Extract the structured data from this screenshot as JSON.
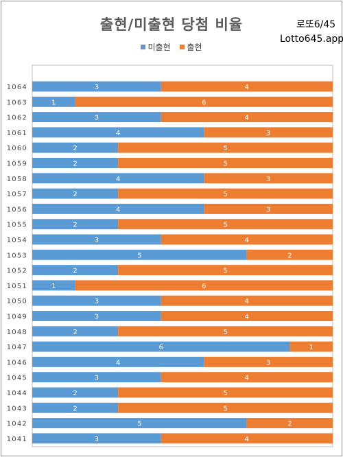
{
  "brand": {
    "line1": "로또6/45",
    "line2": "Lotto645.app"
  },
  "colors": {
    "not_drawn": "#5b9bd5",
    "drawn": "#ed7d31",
    "frame": "#8c8c8c",
    "axis": "#bfbfbf"
  },
  "chart_data": {
    "type": "bar",
    "orientation": "horizontal",
    "stacked": true,
    "title": "출현/미출현 당첨 비율",
    "legend_position": "top",
    "categories": [
      "1064",
      "1063",
      "1062",
      "1061",
      "1060",
      "1059",
      "1058",
      "1057",
      "1056",
      "1055",
      "1054",
      "1053",
      "1052",
      "1051",
      "1050",
      "1049",
      "1048",
      "1047",
      "1046",
      "1045",
      "1044",
      "1043",
      "1042",
      "1041"
    ],
    "series": [
      {
        "name": "미출현",
        "color": "#5b9bd5",
        "values": [
          3,
          1,
          3,
          4,
          2,
          2,
          4,
          2,
          4,
          2,
          3,
          5,
          2,
          1,
          3,
          3,
          2,
          6,
          4,
          3,
          2,
          2,
          5,
          3
        ]
      },
      {
        "name": "출현",
        "color": "#ed7d31",
        "values": [
          4,
          6,
          4,
          3,
          5,
          5,
          3,
          5,
          3,
          5,
          4,
          2,
          5,
          6,
          4,
          4,
          5,
          1,
          3,
          4,
          5,
          5,
          2,
          4
        ]
      }
    ],
    "xlim": [
      0,
      7
    ],
    "grid": false
  }
}
